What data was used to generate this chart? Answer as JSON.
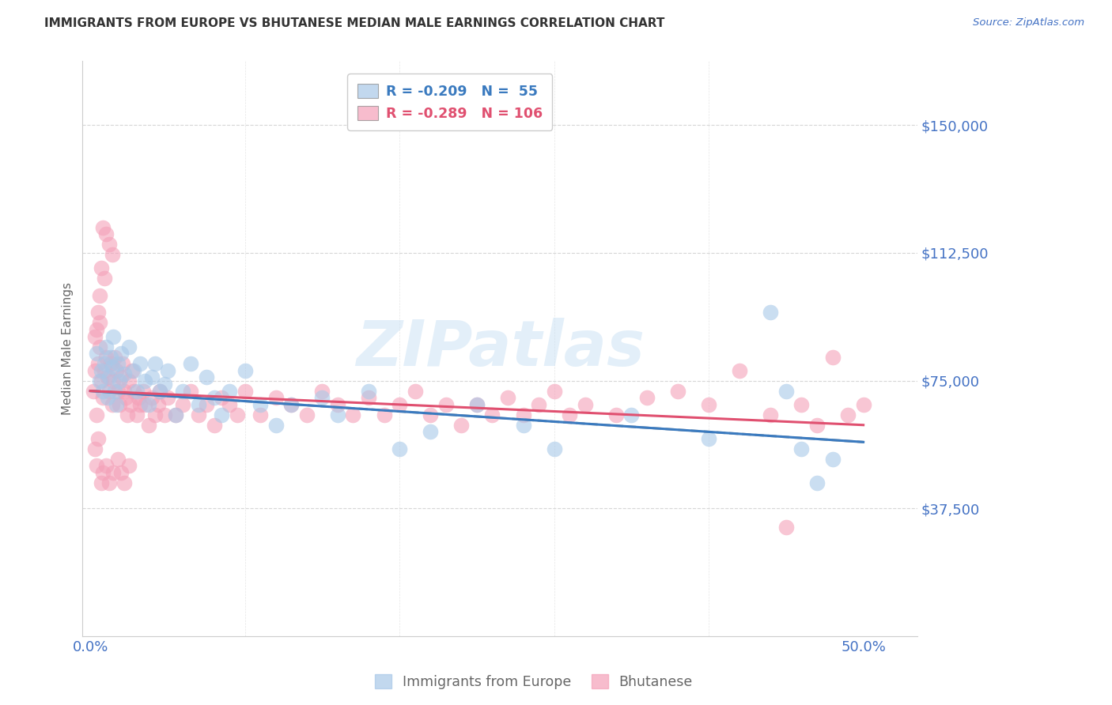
{
  "title": "IMMIGRANTS FROM EUROPE VS BHUTANESE MEDIAN MALE EARNINGS CORRELATION CHART",
  "source_text": "Source: ZipAtlas.com",
  "ylabel": "Median Male Earnings",
  "ytick_labels": [
    "$37,500",
    "$75,000",
    "$112,500",
    "$150,000"
  ],
  "ytick_values": [
    37500,
    75000,
    112500,
    150000
  ],
  "ymin": 0,
  "ymax": 168750,
  "xmin": -0.005,
  "xmax": 0.535,
  "blue_color": "#a8c8e8",
  "pink_color": "#f4a0b8",
  "blue_line_color": "#3a7abf",
  "pink_line_color": "#e05070",
  "dashed_line_color": "#aaaaaa",
  "title_color": "#333333",
  "axis_label_color": "#666666",
  "ytick_color": "#4472c4",
  "xtick_color": "#4472c4",
  "background_color": "#ffffff",
  "grid_color": "#cccccc",
  "watermark": "ZIPatlas",
  "europe_scatter": [
    [
      0.004,
      83000
    ],
    [
      0.006,
      75000
    ],
    [
      0.007,
      78000
    ],
    [
      0.008,
      72000
    ],
    [
      0.009,
      80000
    ],
    [
      0.01,
      85000
    ],
    [
      0.011,
      70000
    ],
    [
      0.012,
      76000
    ],
    [
      0.013,
      82000
    ],
    [
      0.014,
      79000
    ],
    [
      0.015,
      88000
    ],
    [
      0.016,
      72000
    ],
    [
      0.017,
      68000
    ],
    [
      0.018,
      80000
    ],
    [
      0.019,
      75000
    ],
    [
      0.02,
      83000
    ],
    [
      0.022,
      77000
    ],
    [
      0.025,
      85000
    ],
    [
      0.028,
      78000
    ],
    [
      0.03,
      72000
    ],
    [
      0.032,
      80000
    ],
    [
      0.035,
      75000
    ],
    [
      0.038,
      68000
    ],
    [
      0.04,
      76000
    ],
    [
      0.042,
      80000
    ],
    [
      0.045,
      72000
    ],
    [
      0.048,
      74000
    ],
    [
      0.05,
      78000
    ],
    [
      0.055,
      65000
    ],
    [
      0.06,
      72000
    ],
    [
      0.065,
      80000
    ],
    [
      0.07,
      68000
    ],
    [
      0.075,
      76000
    ],
    [
      0.08,
      70000
    ],
    [
      0.085,
      65000
    ],
    [
      0.09,
      72000
    ],
    [
      0.1,
      78000
    ],
    [
      0.11,
      68000
    ],
    [
      0.12,
      62000
    ],
    [
      0.13,
      68000
    ],
    [
      0.15,
      70000
    ],
    [
      0.16,
      65000
    ],
    [
      0.18,
      72000
    ],
    [
      0.2,
      55000
    ],
    [
      0.22,
      60000
    ],
    [
      0.25,
      68000
    ],
    [
      0.28,
      62000
    ],
    [
      0.3,
      55000
    ],
    [
      0.35,
      65000
    ],
    [
      0.4,
      58000
    ],
    [
      0.44,
      95000
    ],
    [
      0.45,
      72000
    ],
    [
      0.46,
      55000
    ],
    [
      0.47,
      45000
    ],
    [
      0.48,
      52000
    ]
  ],
  "bhutan_scatter": [
    [
      0.002,
      72000
    ],
    [
      0.003,
      78000
    ],
    [
      0.004,
      65000
    ],
    [
      0.005,
      80000
    ],
    [
      0.006,
      85000
    ],
    [
      0.007,
      75000
    ],
    [
      0.008,
      70000
    ],
    [
      0.009,
      78000
    ],
    [
      0.01,
      82000
    ],
    [
      0.011,
      76000
    ],
    [
      0.012,
      72000
    ],
    [
      0.013,
      80000
    ],
    [
      0.014,
      68000
    ],
    [
      0.015,
      75000
    ],
    [
      0.016,
      82000
    ],
    [
      0.017,
      78000
    ],
    [
      0.018,
      72000
    ],
    [
      0.019,
      68000
    ],
    [
      0.02,
      76000
    ],
    [
      0.021,
      80000
    ],
    [
      0.022,
      72000
    ],
    [
      0.023,
      70000
    ],
    [
      0.024,
      65000
    ],
    [
      0.025,
      75000
    ],
    [
      0.026,
      68000
    ],
    [
      0.027,
      78000
    ],
    [
      0.028,
      72000
    ],
    [
      0.03,
      65000
    ],
    [
      0.031,
      70000
    ],
    [
      0.032,
      68000
    ],
    [
      0.034,
      72000
    ],
    [
      0.035,
      68000
    ],
    [
      0.038,
      62000
    ],
    [
      0.04,
      70000
    ],
    [
      0.042,
      65000
    ],
    [
      0.044,
      68000
    ],
    [
      0.045,
      72000
    ],
    [
      0.048,
      65000
    ],
    [
      0.05,
      70000
    ],
    [
      0.055,
      65000
    ],
    [
      0.06,
      68000
    ],
    [
      0.065,
      72000
    ],
    [
      0.07,
      65000
    ],
    [
      0.075,
      68000
    ],
    [
      0.08,
      62000
    ],
    [
      0.085,
      70000
    ],
    [
      0.09,
      68000
    ],
    [
      0.095,
      65000
    ],
    [
      0.1,
      72000
    ],
    [
      0.11,
      65000
    ],
    [
      0.12,
      70000
    ],
    [
      0.13,
      68000
    ],
    [
      0.14,
      65000
    ],
    [
      0.15,
      72000
    ],
    [
      0.16,
      68000
    ],
    [
      0.17,
      65000
    ],
    [
      0.18,
      70000
    ],
    [
      0.19,
      65000
    ],
    [
      0.2,
      68000
    ],
    [
      0.21,
      72000
    ],
    [
      0.22,
      65000
    ],
    [
      0.23,
      68000
    ],
    [
      0.24,
      62000
    ],
    [
      0.25,
      68000
    ],
    [
      0.26,
      65000
    ],
    [
      0.27,
      70000
    ],
    [
      0.28,
      65000
    ],
    [
      0.29,
      68000
    ],
    [
      0.3,
      72000
    ],
    [
      0.31,
      65000
    ],
    [
      0.32,
      68000
    ],
    [
      0.34,
      65000
    ],
    [
      0.36,
      70000
    ],
    [
      0.38,
      72000
    ],
    [
      0.4,
      68000
    ],
    [
      0.42,
      78000
    ],
    [
      0.44,
      65000
    ],
    [
      0.46,
      68000
    ],
    [
      0.47,
      62000
    ],
    [
      0.48,
      82000
    ],
    [
      0.49,
      65000
    ],
    [
      0.5,
      68000
    ],
    [
      0.003,
      55000
    ],
    [
      0.004,
      50000
    ],
    [
      0.005,
      58000
    ],
    [
      0.007,
      45000
    ],
    [
      0.008,
      48000
    ],
    [
      0.01,
      50000
    ],
    [
      0.012,
      45000
    ],
    [
      0.015,
      48000
    ],
    [
      0.018,
      52000
    ],
    [
      0.02,
      48000
    ],
    [
      0.022,
      45000
    ],
    [
      0.025,
      50000
    ],
    [
      0.008,
      120000
    ],
    [
      0.01,
      118000
    ],
    [
      0.012,
      115000
    ],
    [
      0.014,
      112000
    ],
    [
      0.007,
      108000
    ],
    [
      0.009,
      105000
    ],
    [
      0.006,
      100000
    ],
    [
      0.005,
      95000
    ],
    [
      0.006,
      92000
    ],
    [
      0.004,
      90000
    ],
    [
      0.003,
      88000
    ],
    [
      0.45,
      32000
    ]
  ],
  "europe_trend": [
    72000,
    57000
  ],
  "bhutan_trend": [
    72000,
    62000
  ]
}
